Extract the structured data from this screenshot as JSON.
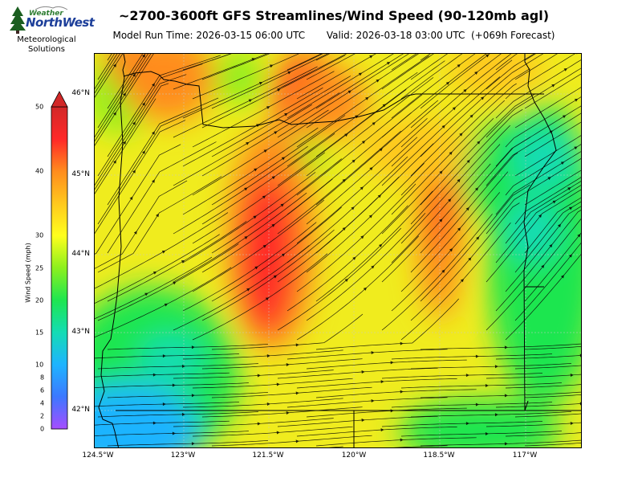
{
  "logo": {
    "brand_top": "Weather",
    "brand_main": "NorthWest",
    "org_line1": "Meteorological",
    "org_line2": "Solutions"
  },
  "header": {
    "title": "~2700-3600ft GFS Streamlines/Wind Speed (90-120mb agl)",
    "model_run": "Model Run Time: 2026-03-15 06:00 UTC",
    "valid": "Valid: 2026-03-18 03:00 UTC  (+069h Forecast)"
  },
  "map": {
    "lat_labels": [
      "46°N",
      "45°N",
      "44°N",
      "43°N",
      "42°N"
    ],
    "lat_values": [
      46,
      45,
      44,
      43,
      42
    ],
    "lon_labels": [
      "124.5°W",
      "123°W",
      "121.5°W",
      "120°W",
      "118.5°W",
      "117°W"
    ],
    "lon_values": [
      -124.5,
      -123,
      -121.5,
      -120,
      -118.5,
      -117
    ],
    "lon_range": [
      -124.5,
      -115.9
    ],
    "lat_range": [
      41.5,
      46.5
    ],
    "grid": true
  },
  "colorbar": {
    "label": "Wind Speed (mph)",
    "ticks": [
      "0",
      "2",
      "4",
      "6",
      "8",
      "10",
      "15",
      "20",
      "25",
      "30",
      "40",
      "50"
    ],
    "tick_values": [
      0,
      2,
      4,
      6,
      8,
      10,
      15,
      20,
      25,
      30,
      40,
      50
    ],
    "colors": [
      "#a64dff",
      "#3c78ff",
      "#1eb4ff",
      "#14dcb4",
      "#1ee650",
      "#8cf01e",
      "#ffff1e",
      "#ffc81e",
      "#ff8c1e",
      "#ff2828",
      "#d22828"
    ],
    "extend": "max"
  }
}
